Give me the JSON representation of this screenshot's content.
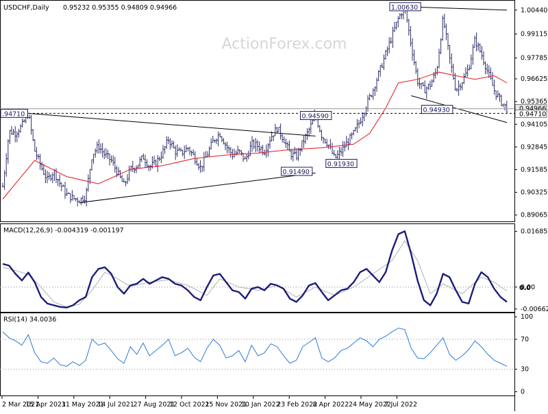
{
  "chart_data": {
    "type": "line",
    "watermark": "ActionForex.com",
    "symbol_header": "USDCHF,Daily",
    "ohlc": [
      "0.95232",
      "0.95355",
      "0.94809",
      "0.94966"
    ],
    "x_tick_labels": [
      "2 Mar 2021",
      "15 Apr 2021",
      "31 May 2021",
      "14 Jul 2021",
      "27 Aug 2021",
      "12 Oct 2021",
      "25 Nov 2021",
      "10 Jan 2022",
      "23 Feb 2022",
      "8 Apr 2022",
      "24 May 2022",
      "7 Jul 2022"
    ],
    "price_panel": {
      "y_ticks": [
        "1.00440",
        "0.99115",
        "0.97785",
        "0.96625",
        "0.95365",
        "0.94105",
        "0.92845",
        "0.91585",
        "0.90325",
        "0.89065"
      ],
      "ylim": [
        0.8875,
        1.0085
      ],
      "current_price": "0.94966",
      "level_tag": "0.94710",
      "close_path": [
        [
          0,
          0.9065
        ],
        [
          6,
          0.9371
        ],
        [
          12,
          0.9362
        ],
        [
          18,
          0.9402
        ],
        [
          24,
          0.9471
        ],
        [
          30,
          0.9265
        ],
        [
          36,
          0.9175
        ],
        [
          42,
          0.91
        ],
        [
          48,
          0.915
        ],
        [
          54,
          0.908
        ],
        [
          60,
          0.902
        ],
        [
          66,
          0.9
        ],
        [
          72,
          0.899
        ],
        [
          78,
          0.901
        ],
        [
          84,
          0.924
        ],
        [
          90,
          0.929
        ],
        [
          96,
          0.924
        ],
        [
          102,
          0.921
        ],
        [
          108,
          0.914
        ],
        [
          114,
          0.907
        ],
        [
          120,
          0.916
        ],
        [
          126,
          0.918
        ],
        [
          132,
          0.923
        ],
        [
          138,
          0.9175
        ],
        [
          144,
          0.9195
        ],
        [
          150,
          0.925
        ],
        [
          156,
          0.933
        ],
        [
          162,
          0.926
        ],
        [
          168,
          0.925
        ],
        [
          174,
          0.928
        ],
        [
          180,
          0.923
        ],
        [
          186,
          0.917
        ],
        [
          192,
          0.924
        ],
        [
          198,
          0.932
        ],
        [
          204,
          0.936
        ],
        [
          210,
          0.929
        ],
        [
          216,
          0.924
        ],
        [
          222,
          0.926
        ],
        [
          228,
          0.921
        ],
        [
          234,
          0.93
        ],
        [
          240,
          0.929
        ],
        [
          246,
          0.926
        ],
        [
          252,
          0.934
        ],
        [
          258,
          0.939
        ],
        [
          264,
          0.933
        ],
        [
          270,
          0.925
        ],
        [
          276,
          0.923
        ],
        [
          282,
          0.931
        ],
        [
          288,
          0.938
        ],
        [
          294,
          0.9459
        ],
        [
          300,
          0.9345
        ],
        [
          306,
          0.93
        ],
        [
          312,
          0.9219
        ],
        [
          318,
          0.926
        ],
        [
          324,
          0.931
        ],
        [
          330,
          0.936
        ],
        [
          336,
          0.943
        ],
        [
          342,
          0.952
        ],
        [
          348,
          0.96
        ],
        [
          354,
          0.97
        ],
        [
          360,
          0.98
        ],
        [
          366,
          0.99
        ],
        [
          372,
          1.0
        ],
        [
          378,
          1.0063
        ],
        [
          384,
          0.985
        ],
        [
          390,
          0.965
        ],
        [
          396,
          0.96
        ],
        [
          402,
          0.963
        ],
        [
          408,
          0.971
        ],
        [
          414,
          1.0
        ],
        [
          420,
          0.978
        ],
        [
          426,
          0.96
        ],
        [
          432,
          0.965
        ],
        [
          438,
          0.972
        ],
        [
          444,
          0.988
        ],
        [
          450,
          0.98
        ],
        [
          456,
          0.97
        ],
        [
          462,
          0.96
        ],
        [
          468,
          0.954
        ],
        [
          474,
          0.9497
        ]
      ],
      "ma_path": [
        [
          0,
          0.8995
        ],
        [
          30,
          0.921
        ],
        [
          60,
          0.912
        ],
        [
          90,
          0.908
        ],
        [
          120,
          0.916
        ],
        [
          150,
          0.918
        ],
        [
          180,
          0.922
        ],
        [
          210,
          0.924
        ],
        [
          240,
          0.925
        ],
        [
          270,
          0.927
        ],
        [
          300,
          0.928
        ],
        [
          330,
          0.93
        ],
        [
          345,
          0.936
        ],
        [
          360,
          0.95
        ],
        [
          372,
          0.964
        ],
        [
          390,
          0.966
        ],
        [
          410,
          0.97
        ],
        [
          426,
          0.968
        ],
        [
          444,
          0.966
        ],
        [
          462,
          0.968
        ],
        [
          474,
          0.964
        ]
      ],
      "trendlines": [
        {
          "from": [
            24,
            0.9471
          ],
          "to": [
            294,
            0.9345
          ]
        },
        {
          "from": [
            72,
            0.8975
          ],
          "to": [
            294,
            0.914
          ]
        },
        {
          "from": [
            378,
            1.0063
          ],
          "to": [
            474,
            1.0044
          ]
        },
        {
          "from": [
            384,
            0.9569
          ],
          "to": [
            474,
            0.942
          ]
        }
      ],
      "horizontal_level": 0.9471,
      "level_labels": [
        {
          "text": ".94710",
          "x": 0,
          "y": 0.9471
        },
        {
          "text": "0.91490",
          "x": 276,
          "y": 0.9149
        },
        {
          "text": "0.91930",
          "x": 318,
          "y": 0.9193
        },
        {
          "text": "0.94590",
          "x": 294,
          "y": 0.9459
        },
        {
          "text": "1.00630",
          "x": 378,
          "y": 1.0063
        },
        {
          "text": "0.94930",
          "x": 408,
          "y": 0.9493
        }
      ]
    },
    "macd_panel": {
      "title": "MACD(12,26,9) -0.004319 -0.001197",
      "y_ticks": [
        "0.016856",
        "0.00",
        "-0.006629"
      ],
      "right_marker": "0.0",
      "ylim": [
        -0.0075,
        0.0182
      ],
      "zero": 0.0,
      "macd": [
        [
          0,
          0.007
        ],
        [
          6,
          0.0065
        ],
        [
          12,
          0.004
        ],
        [
          18,
          0.002
        ],
        [
          24,
          0.0044
        ],
        [
          30,
          0.0015
        ],
        [
          36,
          -0.003
        ],
        [
          42,
          -0.005
        ],
        [
          48,
          -0.0055
        ],
        [
          54,
          -0.006
        ],
        [
          60,
          -0.0062
        ],
        [
          66,
          -0.0055
        ],
        [
          72,
          -0.004
        ],
        [
          78,
          -0.003
        ],
        [
          84,
          0.003
        ],
        [
          90,
          0.0055
        ],
        [
          96,
          0.006
        ],
        [
          102,
          0.004
        ],
        [
          108,
          0.0
        ],
        [
          114,
          -0.002
        ],
        [
          120,
          0.0005
        ],
        [
          126,
          0.001
        ],
        [
          132,
          0.0025
        ],
        [
          138,
          0.001
        ],
        [
          144,
          0.002
        ],
        [
          150,
          0.003
        ],
        [
          156,
          0.0025
        ],
        [
          162,
          0.001
        ],
        [
          168,
          0.0005
        ],
        [
          174,
          -0.001
        ],
        [
          180,
          -0.003
        ],
        [
          186,
          -0.004
        ],
        [
          192,
          0.0
        ],
        [
          198,
          0.0035
        ],
        [
          204,
          0.004
        ],
        [
          210,
          0.0015
        ],
        [
          216,
          -0.001
        ],
        [
          222,
          -0.0015
        ],
        [
          228,
          -0.0035
        ],
        [
          234,
          -0.0005
        ],
        [
          240,
          0.0
        ],
        [
          246,
          -0.001
        ],
        [
          252,
          0.001
        ],
        [
          258,
          0.0005
        ],
        [
          264,
          -0.0005
        ],
        [
          270,
          -0.0035
        ],
        [
          276,
          -0.0045
        ],
        [
          282,
          -0.0025
        ],
        [
          288,
          0.0005
        ],
        [
          294,
          0.0012
        ],
        [
          300,
          -0.0015
        ],
        [
          306,
          -0.004
        ],
        [
          312,
          -0.0025
        ],
        [
          318,
          -0.001
        ],
        [
          324,
          -0.0005
        ],
        [
          330,
          0.0015
        ],
        [
          336,
          0.0045
        ],
        [
          342,
          0.0055
        ],
        [
          348,
          0.0035
        ],
        [
          354,
          0.0015
        ],
        [
          360,
          0.0045
        ],
        [
          366,
          0.011
        ],
        [
          372,
          0.016
        ],
        [
          378,
          0.0169
        ],
        [
          384,
          0.01
        ],
        [
          390,
          0.002
        ],
        [
          396,
          -0.004
        ],
        [
          402,
          -0.0055
        ],
        [
          408,
          -0.002
        ],
        [
          414,
          0.004
        ],
        [
          420,
          0.003
        ],
        [
          426,
          -0.001
        ],
        [
          432,
          -0.0045
        ],
        [
          438,
          -0.005
        ],
        [
          444,
          0.001
        ],
        [
          450,
          0.0045
        ],
        [
          456,
          0.003
        ],
        [
          462,
          -0.0005
        ],
        [
          468,
          -0.003
        ],
        [
          474,
          -0.0045
        ]
      ],
      "signal": [
        [
          0,
          0.006
        ],
        [
          12,
          0.005
        ],
        [
          24,
          0.0038
        ],
        [
          36,
          0.0
        ],
        [
          48,
          -0.0045
        ],
        [
          60,
          -0.006
        ],
        [
          72,
          -0.0052
        ],
        [
          84,
          -0.001
        ],
        [
          96,
          0.0045
        ],
        [
          108,
          0.0025
        ],
        [
          120,
          0.0002
        ],
        [
          138,
          0.0015
        ],
        [
          156,
          0.0022
        ],
        [
          174,
          0.0005
        ],
        [
          192,
          -0.0025
        ],
        [
          204,
          0.0025
        ],
        [
          222,
          0.0
        ],
        [
          240,
          -0.001
        ],
        [
          258,
          0.0005
        ],
        [
          276,
          -0.003
        ],
        [
          294,
          0.0
        ],
        [
          312,
          -0.0025
        ],
        [
          330,
          0.0
        ],
        [
          348,
          0.004
        ],
        [
          366,
          0.008
        ],
        [
          378,
          0.014
        ],
        [
          390,
          0.008
        ],
        [
          402,
          -0.002
        ],
        [
          414,
          0.001
        ],
        [
          432,
          -0.002
        ],
        [
          450,
          0.003
        ],
        [
          462,
          0.0015
        ],
        [
          474,
          -0.0012
        ]
      ]
    },
    "rsi_panel": {
      "title": "RSI(14) 34.0036",
      "y_ticks": [
        "100",
        "70",
        "30",
        "0"
      ],
      "ylim": [
        -5,
        102
      ],
      "levels": [
        70,
        30
      ],
      "rsi": [
        [
          0,
          80
        ],
        [
          6,
          72
        ],
        [
          12,
          68
        ],
        [
          18,
          62
        ],
        [
          24,
          76
        ],
        [
          30,
          52
        ],
        [
          36,
          40
        ],
        [
          42,
          38
        ],
        [
          48,
          45
        ],
        [
          54,
          36
        ],
        [
          60,
          34
        ],
        [
          66,
          40
        ],
        [
          72,
          35
        ],
        [
          78,
          42
        ],
        [
          84,
          70
        ],
        [
          90,
          62
        ],
        [
          96,
          65
        ],
        [
          102,
          55
        ],
        [
          108,
          44
        ],
        [
          114,
          38
        ],
        [
          120,
          60
        ],
        [
          126,
          50
        ],
        [
          132,
          65
        ],
        [
          138,
          48
        ],
        [
          144,
          55
        ],
        [
          150,
          62
        ],
        [
          156,
          70
        ],
        [
          162,
          48
        ],
        [
          168,
          52
        ],
        [
          174,
          58
        ],
        [
          180,
          46
        ],
        [
          186,
          40
        ],
        [
          192,
          58
        ],
        [
          198,
          70
        ],
        [
          204,
          62
        ],
        [
          210,
          45
        ],
        [
          216,
          48
        ],
        [
          222,
          55
        ],
        [
          228,
          40
        ],
        [
          234,
          62
        ],
        [
          240,
          48
        ],
        [
          246,
          52
        ],
        [
          252,
          64
        ],
        [
          258,
          60
        ],
        [
          264,
          48
        ],
        [
          270,
          38
        ],
        [
          276,
          42
        ],
        [
          282,
          60
        ],
        [
          288,
          66
        ],
        [
          294,
          72
        ],
        [
          300,
          45
        ],
        [
          306,
          40
        ],
        [
          312,
          45
        ],
        [
          318,
          55
        ],
        [
          324,
          58
        ],
        [
          330,
          65
        ],
        [
          336,
          72
        ],
        [
          342,
          68
        ],
        [
          348,
          60
        ],
        [
          354,
          70
        ],
        [
          360,
          74
        ],
        [
          366,
          80
        ],
        [
          372,
          85
        ],
        [
          378,
          83
        ],
        [
          384,
          58
        ],
        [
          390,
          45
        ],
        [
          396,
          44
        ],
        [
          402,
          52
        ],
        [
          408,
          62
        ],
        [
          414,
          72
        ],
        [
          420,
          50
        ],
        [
          426,
          42
        ],
        [
          432,
          48
        ],
        [
          438,
          56
        ],
        [
          444,
          68
        ],
        [
          450,
          60
        ],
        [
          456,
          50
        ],
        [
          462,
          42
        ],
        [
          468,
          38
        ],
        [
          474,
          34
        ]
      ]
    }
  }
}
